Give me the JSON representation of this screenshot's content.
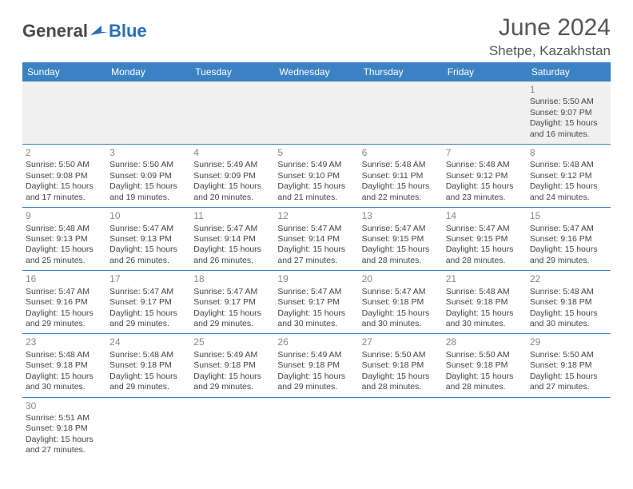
{
  "logo": {
    "part1": "General",
    "part2": "Blue"
  },
  "header": {
    "month": "June 2024",
    "location": "Shetpe, Kazakhstan"
  },
  "colors": {
    "header_bg": "#3b82c4",
    "header_text": "#ffffff",
    "divider": "#3b82c4",
    "daynum": "#888888",
    "body_text": "#444444",
    "empty_bg": "#f0f0f0",
    "logo_general": "#4a4a4a",
    "logo_blue": "#2a6fb5"
  },
  "weekdays": [
    "Sunday",
    "Monday",
    "Tuesday",
    "Wednesday",
    "Thursday",
    "Friday",
    "Saturday"
  ],
  "weeks": [
    [
      null,
      null,
      null,
      null,
      null,
      null,
      {
        "n": "1",
        "sr": "Sunrise: 5:50 AM",
        "ss": "Sunset: 9:07 PM",
        "d1": "Daylight: 15 hours",
        "d2": "and 16 minutes."
      }
    ],
    [
      {
        "n": "2",
        "sr": "Sunrise: 5:50 AM",
        "ss": "Sunset: 9:08 PM",
        "d1": "Daylight: 15 hours",
        "d2": "and 17 minutes."
      },
      {
        "n": "3",
        "sr": "Sunrise: 5:50 AM",
        "ss": "Sunset: 9:09 PM",
        "d1": "Daylight: 15 hours",
        "d2": "and 19 minutes."
      },
      {
        "n": "4",
        "sr": "Sunrise: 5:49 AM",
        "ss": "Sunset: 9:09 PM",
        "d1": "Daylight: 15 hours",
        "d2": "and 20 minutes."
      },
      {
        "n": "5",
        "sr": "Sunrise: 5:49 AM",
        "ss": "Sunset: 9:10 PM",
        "d1": "Daylight: 15 hours",
        "d2": "and 21 minutes."
      },
      {
        "n": "6",
        "sr": "Sunrise: 5:48 AM",
        "ss": "Sunset: 9:11 PM",
        "d1": "Daylight: 15 hours",
        "d2": "and 22 minutes."
      },
      {
        "n": "7",
        "sr": "Sunrise: 5:48 AM",
        "ss": "Sunset: 9:12 PM",
        "d1": "Daylight: 15 hours",
        "d2": "and 23 minutes."
      },
      {
        "n": "8",
        "sr": "Sunrise: 5:48 AM",
        "ss": "Sunset: 9:12 PM",
        "d1": "Daylight: 15 hours",
        "d2": "and 24 minutes."
      }
    ],
    [
      {
        "n": "9",
        "sr": "Sunrise: 5:48 AM",
        "ss": "Sunset: 9:13 PM",
        "d1": "Daylight: 15 hours",
        "d2": "and 25 minutes."
      },
      {
        "n": "10",
        "sr": "Sunrise: 5:47 AM",
        "ss": "Sunset: 9:13 PM",
        "d1": "Daylight: 15 hours",
        "d2": "and 26 minutes."
      },
      {
        "n": "11",
        "sr": "Sunrise: 5:47 AM",
        "ss": "Sunset: 9:14 PM",
        "d1": "Daylight: 15 hours",
        "d2": "and 26 minutes."
      },
      {
        "n": "12",
        "sr": "Sunrise: 5:47 AM",
        "ss": "Sunset: 9:14 PM",
        "d1": "Daylight: 15 hours",
        "d2": "and 27 minutes."
      },
      {
        "n": "13",
        "sr": "Sunrise: 5:47 AM",
        "ss": "Sunset: 9:15 PM",
        "d1": "Daylight: 15 hours",
        "d2": "and 28 minutes."
      },
      {
        "n": "14",
        "sr": "Sunrise: 5:47 AM",
        "ss": "Sunset: 9:15 PM",
        "d1": "Daylight: 15 hours",
        "d2": "and 28 minutes."
      },
      {
        "n": "15",
        "sr": "Sunrise: 5:47 AM",
        "ss": "Sunset: 9:16 PM",
        "d1": "Daylight: 15 hours",
        "d2": "and 29 minutes."
      }
    ],
    [
      {
        "n": "16",
        "sr": "Sunrise: 5:47 AM",
        "ss": "Sunset: 9:16 PM",
        "d1": "Daylight: 15 hours",
        "d2": "and 29 minutes."
      },
      {
        "n": "17",
        "sr": "Sunrise: 5:47 AM",
        "ss": "Sunset: 9:17 PM",
        "d1": "Daylight: 15 hours",
        "d2": "and 29 minutes."
      },
      {
        "n": "18",
        "sr": "Sunrise: 5:47 AM",
        "ss": "Sunset: 9:17 PM",
        "d1": "Daylight: 15 hours",
        "d2": "and 29 minutes."
      },
      {
        "n": "19",
        "sr": "Sunrise: 5:47 AM",
        "ss": "Sunset: 9:17 PM",
        "d1": "Daylight: 15 hours",
        "d2": "and 30 minutes."
      },
      {
        "n": "20",
        "sr": "Sunrise: 5:47 AM",
        "ss": "Sunset: 9:18 PM",
        "d1": "Daylight: 15 hours",
        "d2": "and 30 minutes."
      },
      {
        "n": "21",
        "sr": "Sunrise: 5:48 AM",
        "ss": "Sunset: 9:18 PM",
        "d1": "Daylight: 15 hours",
        "d2": "and 30 minutes."
      },
      {
        "n": "22",
        "sr": "Sunrise: 5:48 AM",
        "ss": "Sunset: 9:18 PM",
        "d1": "Daylight: 15 hours",
        "d2": "and 30 minutes."
      }
    ],
    [
      {
        "n": "23",
        "sr": "Sunrise: 5:48 AM",
        "ss": "Sunset: 9:18 PM",
        "d1": "Daylight: 15 hours",
        "d2": "and 30 minutes."
      },
      {
        "n": "24",
        "sr": "Sunrise: 5:48 AM",
        "ss": "Sunset: 9:18 PM",
        "d1": "Daylight: 15 hours",
        "d2": "and 29 minutes."
      },
      {
        "n": "25",
        "sr": "Sunrise: 5:49 AM",
        "ss": "Sunset: 9:18 PM",
        "d1": "Daylight: 15 hours",
        "d2": "and 29 minutes."
      },
      {
        "n": "26",
        "sr": "Sunrise: 5:49 AM",
        "ss": "Sunset: 9:18 PM",
        "d1": "Daylight: 15 hours",
        "d2": "and 29 minutes."
      },
      {
        "n": "27",
        "sr": "Sunrise: 5:50 AM",
        "ss": "Sunset: 9:18 PM",
        "d1": "Daylight: 15 hours",
        "d2": "and 28 minutes."
      },
      {
        "n": "28",
        "sr": "Sunrise: 5:50 AM",
        "ss": "Sunset: 9:18 PM",
        "d1": "Daylight: 15 hours",
        "d2": "and 28 minutes."
      },
      {
        "n": "29",
        "sr": "Sunrise: 5:50 AM",
        "ss": "Sunset: 9:18 PM",
        "d1": "Daylight: 15 hours",
        "d2": "and 27 minutes."
      }
    ],
    [
      {
        "n": "30",
        "sr": "Sunrise: 5:51 AM",
        "ss": "Sunset: 9:18 PM",
        "d1": "Daylight: 15 hours",
        "d2": "and 27 minutes."
      },
      null,
      null,
      null,
      null,
      null,
      null
    ]
  ]
}
